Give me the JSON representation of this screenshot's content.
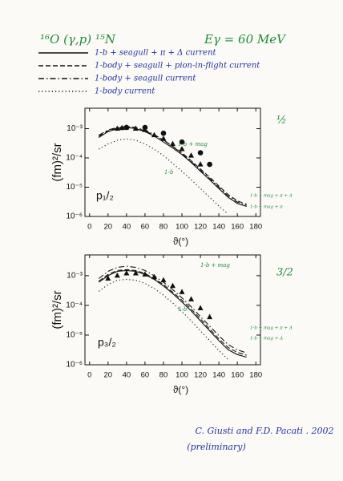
{
  "header": {
    "reaction": "¹⁶O (γ,p) ¹⁵N",
    "energy": "Eγ = 60 MeV"
  },
  "legend": [
    {
      "label": "1-b + seagull + π + Δ current",
      "dash": "solid"
    },
    {
      "label": "1-body + seagull + pion-in-flight current",
      "dash": "dashed"
    },
    {
      "label": "1-body + seagull current",
      "dash": "dashdot"
    },
    {
      "label": "1-body current",
      "dash": "dotted"
    }
  ],
  "chart_data": [
    {
      "type": "line",
      "state": "p₁/₂",
      "fraction": "½",
      "ylabel": "(fm)²/sr",
      "xlabel": "ϑ(°)",
      "log_y": true,
      "x": [
        10,
        20,
        30,
        40,
        50,
        60,
        70,
        80,
        90,
        100,
        110,
        120,
        130,
        140,
        150,
        160,
        170
      ],
      "xlim": [
        -5,
        185
      ],
      "xticks": [
        0,
        20,
        40,
        60,
        80,
        100,
        120,
        140,
        160,
        180
      ],
      "ylim": [
        1e-06,
        0.005
      ],
      "yticks": [
        {
          "value": 1e-06,
          "label": "10⁻⁶"
        },
        {
          "value": 1e-05,
          "label": "10⁻⁵"
        },
        {
          "value": 0.0001,
          "label": "10⁻⁴"
        },
        {
          "value": 0.001,
          "label": "10⁻³"
        }
      ],
      "series": [
        {
          "dash": "solid",
          "values": [
            0.0005,
            0.00079,
            0.001,
            0.0011,
            0.001,
            0.00079,
            0.00056,
            0.00035,
            0.00022,
            0.00013,
            7e-05,
            3.5e-05,
            1.8e-05,
            9e-06,
            4.5e-06,
            2.8e-06,
            2.2e-06
          ]
        },
        {
          "dash": "dashed",
          "values": [
            0.00055,
            0.00085,
            0.00105,
            0.00115,
            0.00105,
            0.00085,
            0.0006,
            0.0004,
            0.00025,
            0.00015,
            8e-05,
            4.2e-05,
            2.2e-05,
            1.1e-05,
            5.6e-06,
            3.4e-06,
            2.6e-06
          ]
        },
        {
          "dash": "dashdot",
          "values": [
            0.0006,
            0.0009,
            0.0011,
            0.0012,
            0.0011,
            0.0009,
            0.00063,
            0.00041,
            0.00025,
            0.00014,
            7.5e-05,
            3.8e-05,
            2e-05,
            1e-05,
            5e-06,
            3.1e-06,
            2.4e-06
          ]
        },
        {
          "dash": "dotted",
          "values": [
            0.0002,
            0.0003,
            0.0004,
            0.00045,
            0.0004,
            0.0003,
            0.0002,
            0.00012,
            6.5e-05,
            3.5e-05,
            1.8e-05,
            9e-06,
            4.5e-06,
            2.3e-06,
            1.2e-06,
            null,
            null
          ]
        },
        {
          "marker": "triangle",
          "x": [
            30,
            35,
            40,
            50,
            60,
            70,
            80,
            90,
            100,
            110,
            120
          ],
          "values": [
            0.001,
            0.00105,
            0.0011,
            0.001,
            0.0009,
            0.0006,
            0.00045,
            0.0003,
            0.0002,
            0.00012,
            6e-05
          ]
        },
        {
          "marker": "circle",
          "x": [
            40,
            60,
            80,
            100,
            120,
            130
          ],
          "values": [
            0.0011,
            0.0011,
            0.0007,
            0.00035,
            0.00015,
            6e-05
          ]
        }
      ],
      "annotations": [
        "1-b + mag",
        "1-b",
        "1-b + mag + π + Δ",
        "1-b + mag + π"
      ]
    },
    {
      "type": "line",
      "state": "p₃/₂",
      "fraction": "3/2",
      "ylabel": "(fm)²/sr",
      "xlabel": "ϑ(°)",
      "log_y": true,
      "x": [
        10,
        20,
        30,
        40,
        50,
        60,
        70,
        80,
        90,
        100,
        110,
        120,
        130,
        140,
        150,
        160,
        170
      ],
      "xlim": [
        -5,
        185
      ],
      "xticks": [
        0,
        20,
        40,
        60,
        80,
        100,
        120,
        140,
        160,
        180
      ],
      "ylim": [
        1e-06,
        0.005
      ],
      "yticks": [
        {
          "value": 1e-06,
          "label": "10⁻⁶"
        },
        {
          "value": 1e-05,
          "label": "10⁻⁵"
        },
        {
          "value": 0.0001,
          "label": "10⁻⁴"
        },
        {
          "value": 0.001,
          "label": "10⁻³"
        }
      ],
      "series": [
        {
          "dash": "solid",
          "values": [
            0.0006,
            0.001,
            0.0014,
            0.0015,
            0.0014,
            0.0011,
            0.00075,
            0.00045,
            0.00025,
            0.00013,
            6.5e-05,
            3e-05,
            1.4e-05,
            6.5e-06,
            3.2e-06,
            2.2e-06,
            1.8e-06
          ]
        },
        {
          "dash": "dashed",
          "values": [
            0.00065,
            0.0011,
            0.0015,
            0.0016,
            0.0015,
            0.0012,
            0.0008,
            0.0005,
            0.00028,
            0.00015,
            7.5e-05,
            3.5e-05,
            1.6e-05,
            7.5e-06,
            3.8e-06,
            2.6e-06,
            2.1e-06
          ]
        },
        {
          "dash": "dashdot",
          "values": [
            0.0008,
            0.0014,
            0.0019,
            0.0021,
            0.0019,
            0.0015,
            0.001,
            0.0006,
            0.00034,
            0.00018,
            9e-05,
            4.2e-05,
            2e-05,
            9.5e-06,
            4.8e-06,
            3.2e-06,
            2.5e-06
          ]
        },
        {
          "dash": "dotted",
          "values": [
            0.0003,
            0.0005,
            0.0007,
            0.00075,
            0.0007,
            0.00055,
            0.00037,
            0.00022,
            0.00012,
            6.2e-05,
            3e-05,
            1.4e-05,
            6.5e-06,
            3e-06,
            1.5e-06,
            null,
            null
          ]
        },
        {
          "marker": "triangle",
          "x": [
            20,
            30,
            40,
            50,
            60,
            70,
            80,
            90,
            100,
            110,
            120,
            130
          ],
          "values": [
            0.0008,
            0.001,
            0.0012,
            0.0012,
            0.0011,
            0.0009,
            0.0007,
            0.00045,
            0.00028,
            0.00016,
            8e-05,
            4e-05
          ]
        }
      ],
      "annotations": [
        "1-b + mag",
        "1-b",
        "1-b + mag + π + Δ",
        "1-b + mag + Δ"
      ]
    }
  ],
  "footer": {
    "author": "C. Giusti and F.D. Pacati . 2002",
    "note": "(preliminary)"
  }
}
